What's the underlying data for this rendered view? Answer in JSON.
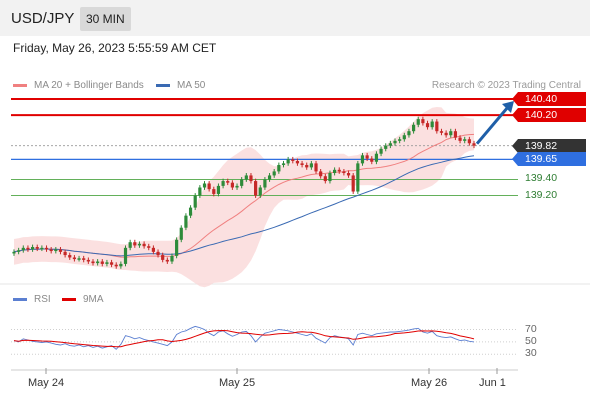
{
  "header": {
    "symbol": "USD/JPY",
    "timeframe": "30 MIN"
  },
  "datetime": "Friday, May 26, 2023 5:55:59 AM CET",
  "legend": {
    "ma20": "MA 20 + Bollinger Bands",
    "ma50": "MA 50",
    "credit": "Research © 2023 Trading Central"
  },
  "rsi_legend": {
    "rsi": "RSI",
    "ma9": "9MA"
  },
  "colors": {
    "resistance": "#e00000",
    "support_green": "#63b05a",
    "current": "#333333",
    "pivot_blue": "#2f6fe0",
    "ma20": "#f08080",
    "ma50": "#3a6ab3",
    "up_candle": "#2e8b3a",
    "down_candle": "#c62828",
    "arrow": "#1f5fa8"
  },
  "levels": [
    {
      "value": 140.4,
      "label": "140.40",
      "kind": "resistance"
    },
    {
      "value": 140.2,
      "label": "140.20",
      "kind": "resistance"
    },
    {
      "value": 139.82,
      "label": "139.82",
      "kind": "current"
    },
    {
      "value": 139.65,
      "label": "139.65",
      "kind": "pivot"
    },
    {
      "value": 139.4,
      "label": "139.40",
      "kind": "support"
    },
    {
      "value": 139.2,
      "label": "139.20",
      "kind": "support"
    }
  ],
  "rsi_ticks": [
    "70",
    "50",
    "30"
  ],
  "x_labels": [
    "May 24",
    "May 25",
    "May 26",
    "Jun 1"
  ],
  "chart_data": {
    "type": "candlestick",
    "series": [
      {
        "name": "MA 20 + Bollinger Bands"
      },
      {
        "name": "MA 50"
      },
      {
        "name": "RSI"
      },
      {
        "name": "9MA"
      }
    ],
    "closes": [
      138.5,
      138.52,
      138.55,
      138.53,
      138.56,
      138.54,
      138.55,
      138.53,
      138.51,
      138.53,
      138.5,
      138.46,
      138.43,
      138.41,
      138.42,
      138.4,
      138.38,
      138.36,
      138.38,
      138.35,
      138.37,
      138.34,
      138.32,
      138.35,
      138.55,
      138.62,
      138.58,
      138.6,
      138.57,
      138.55,
      138.5,
      138.46,
      138.4,
      138.38,
      138.45,
      138.65,
      138.8,
      138.95,
      139.05,
      139.2,
      139.3,
      139.35,
      139.28,
      139.22,
      139.32,
      139.38,
      139.36,
      139.3,
      139.32,
      139.4,
      139.45,
      139.38,
      139.2,
      139.3,
      139.4,
      139.45,
      139.5,
      139.58,
      139.6,
      139.65,
      139.63,
      139.6,
      139.58,
      139.55,
      139.6,
      139.5,
      139.44,
      139.38,
      139.48,
      139.52,
      139.5,
      139.48,
      139.45,
      139.25,
      139.6,
      139.7,
      139.66,
      139.62,
      139.72,
      139.78,
      139.82,
      139.85,
      139.88,
      139.9,
      139.95,
      140.0,
      140.08,
      140.15,
      140.1,
      140.05,
      140.12,
      140.0,
      139.98,
      139.95,
      140.0,
      139.92,
      139.88,
      139.9,
      139.85,
      139.82
    ],
    "opens": [
      138.48,
      138.5,
      138.52,
      138.55,
      138.53,
      138.56,
      138.54,
      138.55,
      138.53,
      138.51,
      138.53,
      138.5,
      138.46,
      138.43,
      138.41,
      138.42,
      138.4,
      138.38,
      138.36,
      138.38,
      138.35,
      138.37,
      138.34,
      138.32,
      138.35,
      138.55,
      138.62,
      138.58,
      138.6,
      138.57,
      138.55,
      138.5,
      138.46,
      138.4,
      138.38,
      138.45,
      138.65,
      138.8,
      138.95,
      139.05,
      139.2,
      139.3,
      139.35,
      139.28,
      139.22,
      139.32,
      139.38,
      139.36,
      139.3,
      139.32,
      139.4,
      139.45,
      139.38,
      139.2,
      139.3,
      139.4,
      139.45,
      139.5,
      139.58,
      139.6,
      139.65,
      139.63,
      139.6,
      139.58,
      139.55,
      139.6,
      139.5,
      139.44,
      139.38,
      139.48,
      139.52,
      139.5,
      139.48,
      139.45,
      139.25,
      139.6,
      139.7,
      139.66,
      139.62,
      139.72,
      139.78,
      139.82,
      139.85,
      139.88,
      139.9,
      139.95,
      140.0,
      140.08,
      140.15,
      140.1,
      140.05,
      140.12,
      140.0,
      139.98,
      139.95,
      140.0,
      139.92,
      139.88,
      139.9,
      139.85
    ],
    "rsi": [
      52,
      50,
      55,
      53,
      51,
      50,
      49,
      50,
      48,
      46,
      45,
      47,
      44,
      43,
      45,
      42,
      44,
      41,
      43,
      40,
      42,
      44,
      38,
      46,
      60,
      58,
      55,
      57,
      54,
      52,
      50,
      48,
      46,
      44,
      50,
      62,
      66,
      68,
      72,
      75,
      73,
      70,
      64,
      60,
      66,
      68,
      63,
      59,
      62,
      66,
      67,
      60,
      50,
      58,
      64,
      66,
      68,
      70,
      69,
      68,
      66,
      64,
      62,
      60,
      63,
      56,
      52,
      48,
      57,
      60,
      58,
      57,
      55,
      45,
      62,
      64,
      62,
      60,
      63,
      64,
      65,
      66,
      66,
      67,
      68,
      69,
      71,
      72,
      66,
      64,
      67,
      60,
      58,
      57,
      58,
      55,
      52,
      53,
      51,
      50
    ]
  }
}
